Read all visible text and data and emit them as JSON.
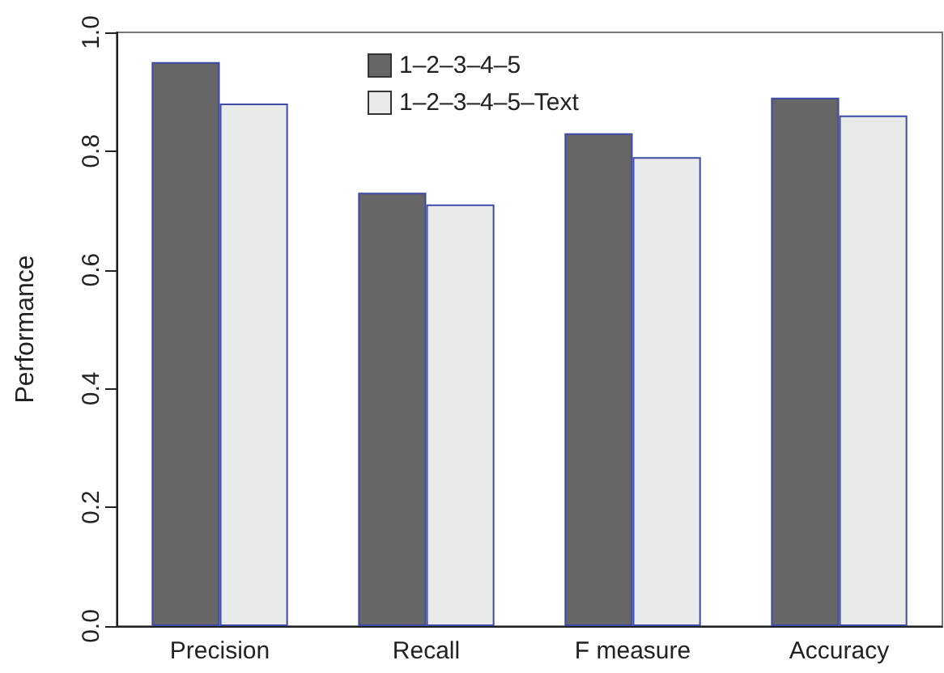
{
  "chart_data": {
    "type": "bar",
    "ylabel": "Performance",
    "categories": [
      "Precision",
      "Recall",
      "F measure",
      "Accuracy"
    ],
    "series": [
      {
        "name": "1–2–3–4–5",
        "color": "#666666",
        "values": [
          0.95,
          0.73,
          0.83,
          0.89
        ]
      },
      {
        "name": "1–2–3–4–5–Text",
        "color": "#e9ebea",
        "values": [
          0.88,
          0.71,
          0.79,
          0.86
        ]
      }
    ],
    "ylim": [
      0,
      1
    ],
    "yticks": [
      {
        "value": 0,
        "label": "0.0"
      },
      0.2,
      0.4,
      0.6,
      0.8,
      {
        "value": 1,
        "label": "1.0"
      }
    ],
    "grid": false,
    "legend": "top"
  }
}
